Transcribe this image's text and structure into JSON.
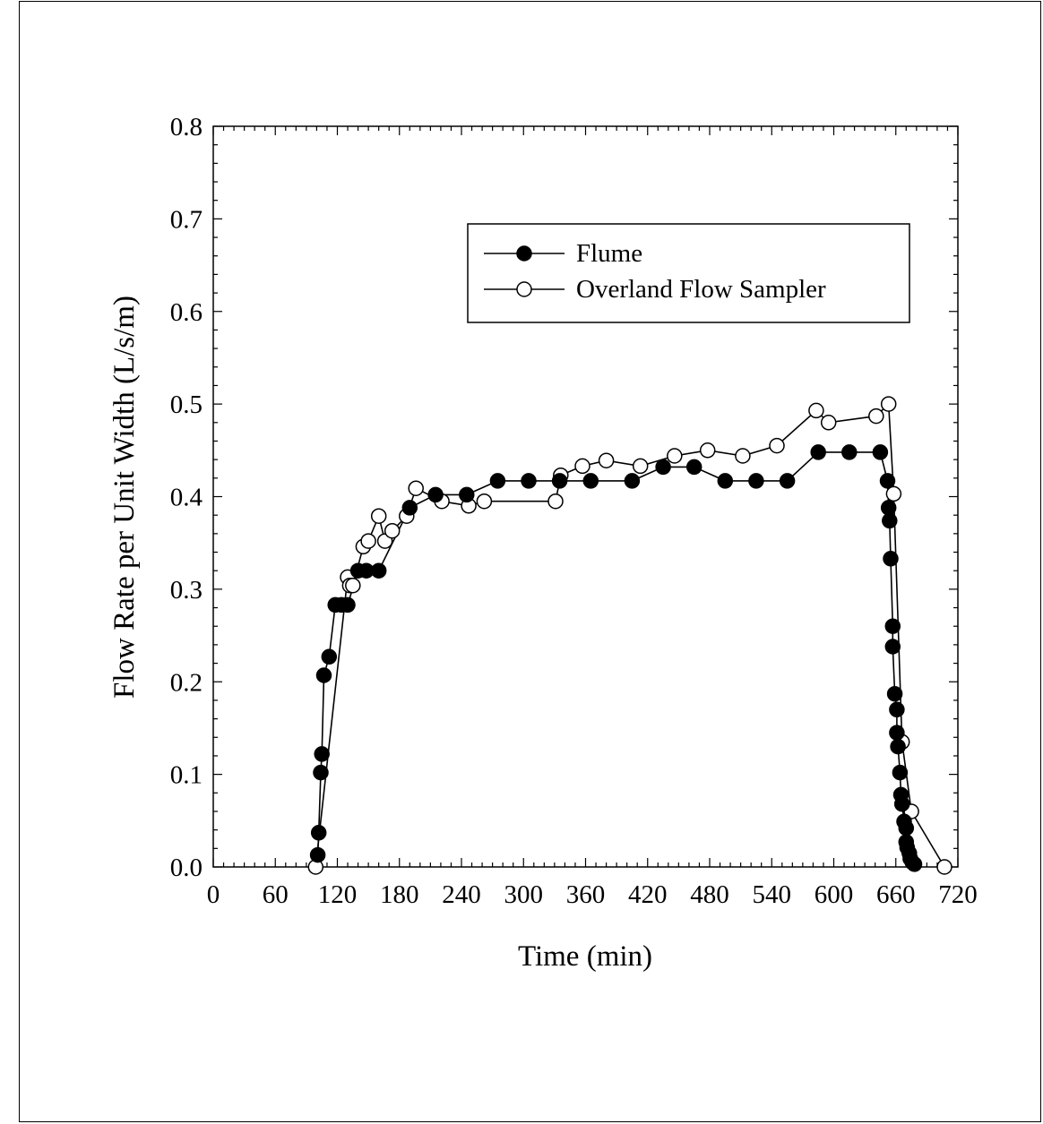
{
  "chart_data": {
    "type": "line",
    "title": "",
    "xlabel": "Time (min)",
    "ylabel": "Flow Rate per Unit Width (L/s/m)",
    "xlim": [
      0,
      720
    ],
    "ylim": [
      0,
      0.8
    ],
    "xticks": [
      0,
      60,
      120,
      180,
      240,
      300,
      360,
      420,
      480,
      540,
      600,
      660,
      720
    ],
    "yticks": [
      0.0,
      0.1,
      0.2,
      0.3,
      0.4,
      0.5,
      0.6,
      0.7,
      0.8
    ],
    "ytick_labels": [
      "0.0",
      "0.1",
      "0.2",
      "0.3",
      "0.4",
      "0.5",
      "0.6",
      "0.7",
      "0.8"
    ],
    "grid": false,
    "legend_position": "upper-right",
    "series": [
      {
        "name": "Flume",
        "marker": "filled-circle",
        "color": "#000000",
        "points": [
          [
            101,
            0.013
          ],
          [
            102,
            0.037
          ],
          [
            104,
            0.102
          ],
          [
            105,
            0.122
          ],
          [
            107,
            0.207
          ],
          [
            112,
            0.227
          ],
          [
            118,
            0.283
          ],
          [
            124,
            0.283
          ],
          [
            130,
            0.283
          ],
          [
            140,
            0.32
          ],
          [
            148,
            0.32
          ],
          [
            160,
            0.32
          ],
          [
            190,
            0.388
          ],
          [
            215,
            0.402
          ],
          [
            245,
            0.402
          ],
          [
            275,
            0.417
          ],
          [
            305,
            0.417
          ],
          [
            335,
            0.417
          ],
          [
            365,
            0.417
          ],
          [
            405,
            0.417
          ],
          [
            435,
            0.432
          ],
          [
            465,
            0.432
          ],
          [
            495,
            0.417
          ],
          [
            525,
            0.417
          ],
          [
            555,
            0.417
          ],
          [
            585,
            0.448
          ],
          [
            615,
            0.448
          ],
          [
            645,
            0.448
          ],
          [
            652,
            0.417
          ],
          [
            653,
            0.388
          ],
          [
            654,
            0.374
          ],
          [
            655,
            0.333
          ],
          [
            657,
            0.26
          ],
          [
            657,
            0.238
          ],
          [
            659,
            0.187
          ],
          [
            661,
            0.17
          ],
          [
            661,
            0.145
          ],
          [
            662,
            0.13
          ],
          [
            664,
            0.102
          ],
          [
            665,
            0.078
          ],
          [
            666,
            0.068
          ],
          [
            668,
            0.049
          ],
          [
            670,
            0.042
          ],
          [
            670,
            0.027
          ],
          [
            671,
            0.021
          ],
          [
            673,
            0.015
          ],
          [
            674,
            0.009
          ],
          [
            676,
            0.005
          ],
          [
            678,
            0.003
          ]
        ]
      },
      {
        "name": "Overland Flow Sampler",
        "marker": "open-circle",
        "color": "#000000",
        "points": [
          [
            99,
            0.0
          ],
          [
            130,
            0.313
          ],
          [
            132,
            0.304
          ],
          [
            135,
            0.304
          ],
          [
            145,
            0.346
          ],
          [
            150,
            0.352
          ],
          [
            160,
            0.379
          ],
          [
            166,
            0.352
          ],
          [
            173,
            0.363
          ],
          [
            187,
            0.379
          ],
          [
            196,
            0.409
          ],
          [
            221,
            0.395
          ],
          [
            247,
            0.39
          ],
          [
            262,
            0.395
          ],
          [
            331,
            0.395
          ],
          [
            336,
            0.423
          ],
          [
            357,
            0.433
          ],
          [
            380,
            0.439
          ],
          [
            413,
            0.433
          ],
          [
            446,
            0.444
          ],
          [
            478,
            0.45
          ],
          [
            512,
            0.444
          ],
          [
            545,
            0.455
          ],
          [
            583,
            0.493
          ],
          [
            595,
            0.48
          ],
          [
            641,
            0.487
          ],
          [
            653,
            0.5
          ],
          [
            658,
            0.403
          ],
          [
            666,
            0.135
          ],
          [
            675,
            0.06
          ],
          [
            707,
            0.0
          ]
        ]
      }
    ]
  }
}
